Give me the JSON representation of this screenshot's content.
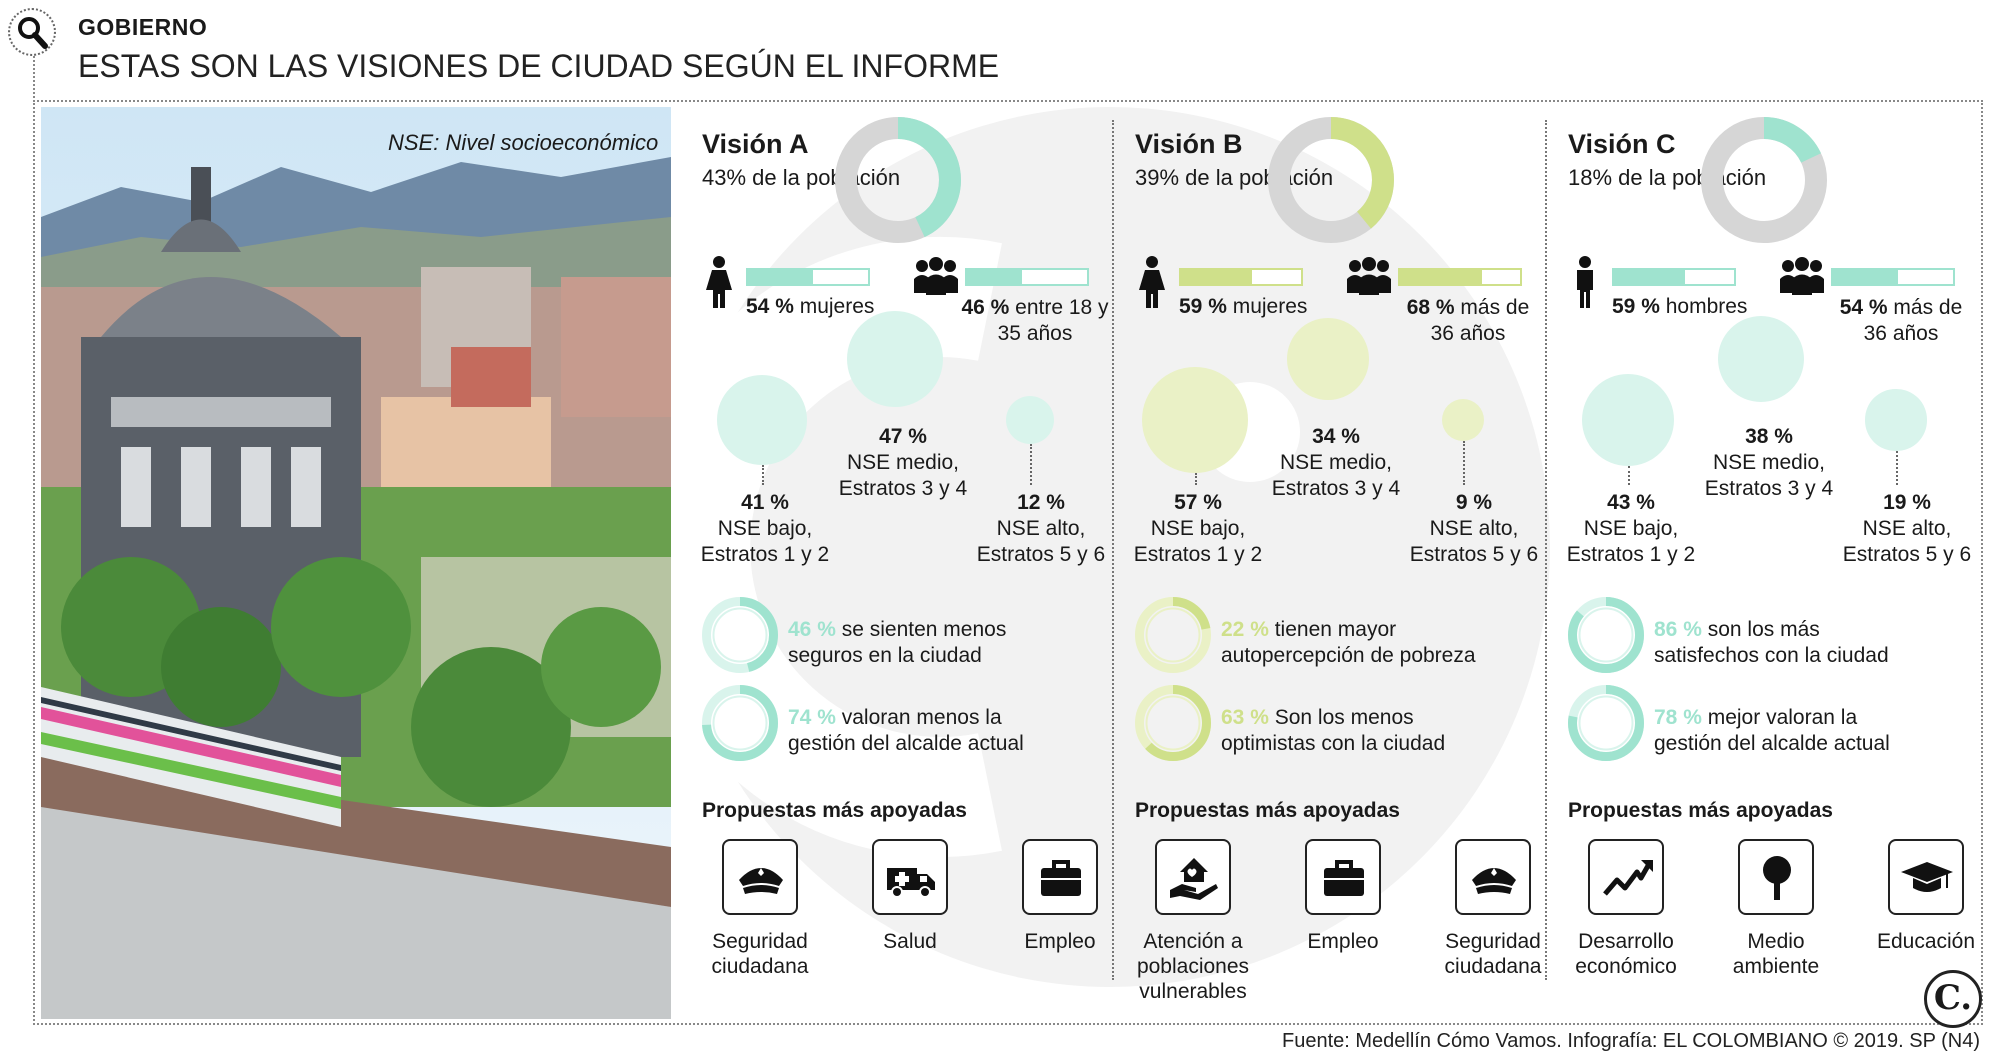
{
  "header": {
    "section": "GOBIERNO",
    "headline": "ESTAS SON LAS VISIONES DE CIUDAD SEGÚN EL INFORME"
  },
  "photo_note": "NSE: Nivel socioeconómico",
  "colors": {
    "teal": "#9fe3cf",
    "teal_light": "#d9f4ec",
    "olive": "#cfe08a",
    "olive_light": "#eaf1c6",
    "grey_track": "#d6d6d6"
  },
  "visions": [
    {
      "title": "Visión A",
      "population": "43% de la población",
      "population_fraction": 0.43,
      "accent": "#9fe3cf",
      "accent_light": "#d9f4ec",
      "gender_icon": "woman-icon",
      "gender_pct": "54 %",
      "gender_fraction": 0.54,
      "gender_label": "mujeres",
      "age_pct": "46 %",
      "age_fraction": 0.46,
      "age_label": "entre 18 y 35 años",
      "nse": [
        {
          "pct": "41 %",
          "label": "NSE bajo,",
          "label2": "Estratos 1 y 2"
        },
        {
          "pct": "47 %",
          "label": "NSE medio,",
          "label2": "Estratos 3 y 4"
        },
        {
          "pct": "12 %",
          "label": "NSE alto,",
          "label2": "Estratos 5 y 6"
        }
      ],
      "stats": [
        {
          "pct": "46 %",
          "text1": "se sienten menos",
          "text2": "seguros en la ciudad",
          "fraction": 0.46
        },
        {
          "pct": "74 %",
          "text1": "valoran menos la",
          "text2": "gestión del alcalde actual",
          "fraction": 0.74
        }
      ],
      "props_title": "Propuestas más apoyadas",
      "props": [
        {
          "icon": "police-cap-icon",
          "line1": "Seguridad",
          "line2": "ciudadana"
        },
        {
          "icon": "ambulance-icon",
          "line1": "Salud",
          "line2": ""
        },
        {
          "icon": "briefcase-icon",
          "line1": "Empleo",
          "line2": ""
        }
      ]
    },
    {
      "title": "Visión B",
      "population": "39% de la población",
      "population_fraction": 0.39,
      "accent": "#cfe08a",
      "accent_light": "#eaf1c6",
      "gender_icon": "woman-icon",
      "gender_pct": "59 %",
      "gender_fraction": 0.59,
      "gender_label": "mujeres",
      "age_pct": "68 %",
      "age_fraction": 0.68,
      "age_label": "más de 36 años",
      "nse": [
        {
          "pct": "57 %",
          "label": "NSE bajo,",
          "label2": "Estratos 1 y 2"
        },
        {
          "pct": "34 %",
          "label": "NSE medio,",
          "label2": "Estratos 3 y 4"
        },
        {
          "pct": "9 %",
          "label": "NSE alto,",
          "label2": "Estratos 5 y 6"
        }
      ],
      "stats": [
        {
          "pct": "22 %",
          "text1": "tienen mayor",
          "text2": "autopercepción de pobreza",
          "fraction": 0.22
        },
        {
          "pct": "63 %",
          "text1": "Son los menos",
          "text2": "optimistas con la ciudad",
          "fraction": 0.63
        }
      ],
      "props_title": "Propuestas más apoyadas",
      "props": [
        {
          "icon": "house-hand-icon",
          "line1": "Atención a",
          "line2": "poblaciones",
          "line3": "vulnerables"
        },
        {
          "icon": "briefcase-icon",
          "line1": "Empleo",
          "line2": ""
        },
        {
          "icon": "police-cap-icon",
          "line1": "Seguridad",
          "line2": "ciudadana"
        }
      ]
    },
    {
      "title": "Visión C",
      "population": "18% de la población",
      "population_fraction": 0.18,
      "accent": "#9fe3cf",
      "accent_light": "#d9f4ec",
      "gender_icon": "man-icon",
      "gender_pct": "59 %",
      "gender_fraction": 0.59,
      "gender_label": "hombres",
      "age_pct": "54 %",
      "age_fraction": 0.54,
      "age_label": "más de 36 años",
      "nse": [
        {
          "pct": "43 %",
          "label": "NSE bajo,",
          "label2": "Estratos 1 y 2"
        },
        {
          "pct": "38 %",
          "label": "NSE medio,",
          "label2": "Estratos 3 y 4"
        },
        {
          "pct": "19 %",
          "label": "NSE alto,",
          "label2": "Estratos 5 y 6"
        }
      ],
      "stats": [
        {
          "pct": "86 %",
          "text1": "son los más",
          "text2": "satisfechos con la ciudad",
          "fraction": 0.86
        },
        {
          "pct": "78 %",
          "text1": "mejor valoran la",
          "text2": "gestión del alcalde actual",
          "fraction": 0.78
        }
      ],
      "props_title": "Propuestas más apoyadas",
      "props": [
        {
          "icon": "trend-up-icon",
          "line1": "Desarrollo",
          "line2": "económico"
        },
        {
          "icon": "tree-icon",
          "line1": "Medio",
          "line2": "ambiente"
        },
        {
          "icon": "graduation-cap-icon",
          "line1": "Educación",
          "line2": ""
        }
      ]
    }
  ],
  "logo_letter": "C.",
  "source": "Fuente: Medellín Cómo Vamos. Infografía: EL COLOMBIANO © 2019. SP (N4)"
}
